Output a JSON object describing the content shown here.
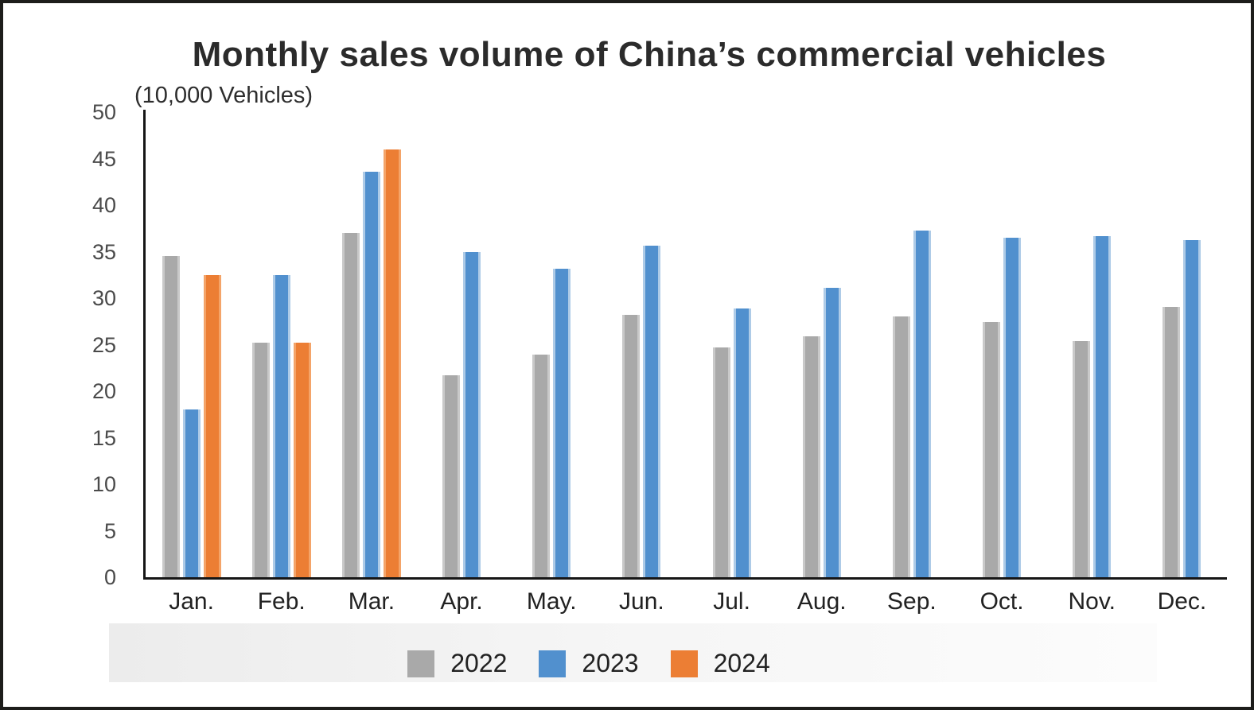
{
  "title": "Monthly sales volume of China’s commercial vehicles",
  "unit_label": "(10,000 Vehicles)",
  "colors": {
    "background": "#ffffff",
    "frame": "#1d1d1b",
    "axis": "#161616",
    "title_text": "#2b2b2b",
    "tick_text": "#4a4a4a",
    "label_text": "#222222",
    "series_2022": "#a9a9a9",
    "series_2023": "#5190ce",
    "series_2024": "#ec7e34"
  },
  "chart_data": {
    "type": "bar",
    "title": "Monthly sales volume of China’s commercial vehicles",
    "xlabel": "",
    "ylabel": "(10,000 Vehicles)",
    "ylim": [
      0,
      50
    ],
    "yticks": [
      0,
      5,
      10,
      15,
      20,
      25,
      30,
      35,
      40,
      45,
      50
    ],
    "grid": false,
    "legend_position": "bottom",
    "categories": [
      "Jan.",
      "Feb.",
      "Mar.",
      "Apr.",
      "May.",
      "Jun.",
      "Jul.",
      "Aug.",
      "Sep.",
      "Oct.",
      "Nov.",
      "Dec."
    ],
    "series": [
      {
        "name": "2022",
        "color": "#a9a9a9",
        "edge": "#c9c9c9",
        "values": [
          34.5,
          25.2,
          37.0,
          21.7,
          23.9,
          28.2,
          24.7,
          25.9,
          28.0,
          27.4,
          25.4,
          29.1
        ]
      },
      {
        "name": "2023",
        "color": "#5190ce",
        "edge": "#aecbe7",
        "values": [
          18.0,
          32.5,
          43.6,
          35.0,
          33.2,
          35.6,
          28.9,
          31.1,
          37.3,
          36.5,
          36.7,
          36.2
        ]
      },
      {
        "name": "2024",
        "color": "#ec7e34",
        "edge": "#f4a469",
        "values": [
          32.5,
          25.2,
          46.0,
          null,
          null,
          null,
          null,
          null,
          null,
          null,
          null,
          null
        ]
      }
    ]
  }
}
